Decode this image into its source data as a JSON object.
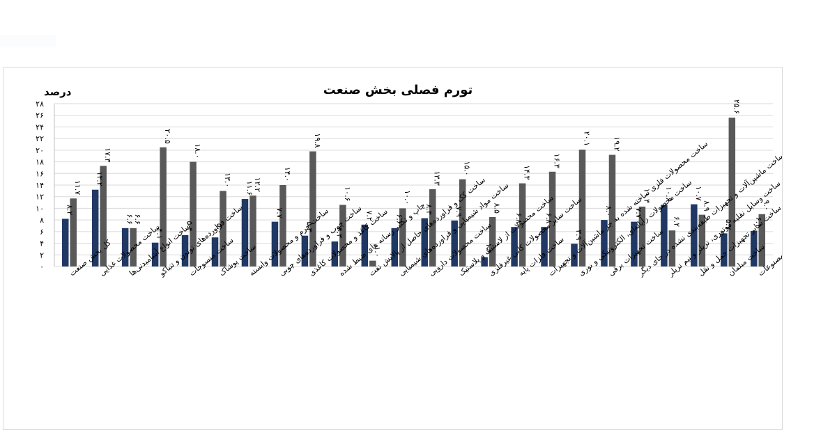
{
  "chart_data": {
    "type": "bar",
    "title": "تورم فصلی بخش صنعت",
    "ylabel": "درصد",
    "ylim": [
      0,
      28
    ],
    "yticks": [
      "۰",
      "۲",
      "۴",
      "۶",
      "۸",
      "۱۰",
      "۱۲",
      "۱۴",
      "۱۶",
      "۱۸",
      "۲۰",
      "۲۲",
      "۲۴",
      "۲۶",
      "۲۸"
    ],
    "grid": true,
    "legend": "none",
    "colors": {
      "series1": "#203864",
      "series2": "#595959",
      "grid": "#d9d9d9",
      "text": "#000000"
    },
    "categories": [
      "کل بخش صنعت",
      "ساخت محصولات غذایی",
      "ساخت انواع آشامیدنی‌ها",
      "ساخت فراورده‌های توتون و تنباکو",
      "ساخت منسوجات",
      "ساخت پوشاک",
      "ساخت چرم و محصولات وابسته",
      "ساخت چوب و فراورده‌های چوبی",
      "ساخت کاغذ و محصولات کاغذی",
      "چاپ و تکثیر رسانه های ضبط شده",
      "ساخت کک و فراورده‌های حاصل از پالایش نفت",
      "ساخت مواد شیمیایی و فراورده‌های شیمیایی",
      "ساخت محصولات دارویی",
      "ساخت محصولات از لاستیک و پلاستیک",
      "ساخت سایر محصولات کانی غیرفلزی",
      "ساخت فلزات پایه",
      "ساخت محصولات فلزی ساخته شده به جز ماشین‌آلات و تجهیزات",
      "ساخت محصولات رایانه‌ای، الکترونیکی و نوری",
      "ساخت تجهیزات برقی",
      "ساخت ماشین‌آلات و تجهیزات طبقه‌بندی نشده در جای دیگر",
      "ساخت وسایل نقلیه موتوری، تریلر و نیم تریلر",
      "ساخت سایر تجهیزات حمل و نقل",
      "ساخت مبلمان",
      "ساخت سایر مصنوعات"
    ],
    "series": [
      {
        "values": [
          8.2,
          13.2,
          6.6,
          4.1,
          5.4,
          5.0,
          11.6,
          7.7,
          5.3,
          4.3,
          7.2,
          6.6,
          8.3,
          7.9,
          1.6,
          6.8,
          6.8,
          3.9,
          8.0,
          7.7,
          10.6,
          10.7,
          5.7,
          6.1
        ],
        "labels": [
          "۸.۲",
          "۱۳.۲",
          "۶.۶",
          "۴.۱",
          "۵.۴",
          "۵.۰",
          "۱۱.۶",
          "۷.۷",
          "۵.۳",
          "۴.۳",
          "۷.۲",
          "۶.۶",
          "۸.۳",
          "۷.۹",
          "۱.۶",
          "۶.۸",
          "۶.۸",
          "۳.۹",
          "۸.۰",
          "۷.۷",
          "۱۰.۶",
          "۱۰.۷",
          "۵.۷",
          "۶.۱"
        ]
      },
      {
        "values": [
          11.7,
          17.3,
          6.6,
          20.5,
          18.0,
          13.0,
          12.2,
          14.0,
          19.8,
          10.6,
          1.0,
          10.0,
          13.3,
          15.0,
          8.5,
          14.3,
          16.3,
          20.1,
          19.2,
          10.3,
          6.2,
          8.9,
          25.6,
          9.0
        ],
        "labels": [
          "۱۱.۷",
          "۱۷.۳",
          "۶.۶",
          "۲۰.۵",
          "۱۸.۰",
          "۱۳.۰",
          "۱۲.۲",
          "۱۴.۰",
          "۱۹.۸",
          "۱۰.۶",
          "۱.۰",
          "۱۰.۰",
          "۱۳.۳",
          "۱۵.۰",
          "۸.۵",
          "۱۴.۳",
          "۱۶.۳",
          "۲۰.۱",
          "۱۹.۲",
          "۱۰.۳",
          "۶.۲",
          "۸.۹",
          "۲۵.۶",
          "۹.۰"
        ]
      }
    ]
  }
}
